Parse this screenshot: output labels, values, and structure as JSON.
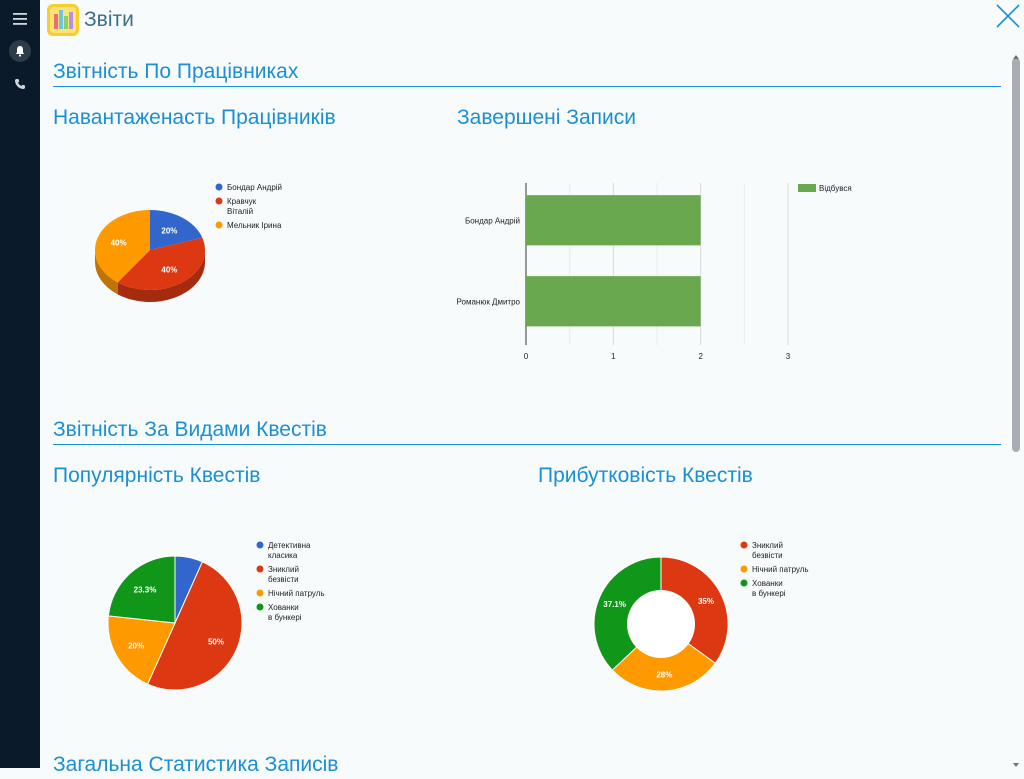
{
  "app": {
    "title": "Звіти",
    "icon": "bar-chart-icon"
  },
  "sidebar": {
    "items": [
      {
        "icon": "menu-icon"
      },
      {
        "icon": "bell-icon"
      },
      {
        "icon": "phone-icon"
      }
    ]
  },
  "sections": {
    "employees": "Звітність По Працівниках",
    "quests": "Звітність За Видами Квестів",
    "general": "Загальна Статистика Записів"
  },
  "chart_data": [
    {
      "type": "pie",
      "title": "Навантаженасть Працівників",
      "legend_placement": "right",
      "slices": [
        {
          "label": "Бондар Андрій",
          "value": 20,
          "color": "#3366cc"
        },
        {
          "label": "Кравчук Віталій",
          "value": 40,
          "color": "#dc3912"
        },
        {
          "label": "Мельник Ірина",
          "value": 40,
          "color": "#ff9900"
        }
      ],
      "data_labels": [
        "20%",
        "40%",
        "40%"
      ]
    },
    {
      "type": "bar",
      "orientation": "horizontal",
      "title": "Завершені Записи",
      "categories": [
        "Бондар Андрій",
        "Романюк Дмитро"
      ],
      "series": [
        {
          "name": "Відбувся",
          "values": [
            2,
            2
          ],
          "color": "#6aa84f"
        }
      ],
      "xlim": [
        0,
        3
      ],
      "xticks": [
        "0",
        "1",
        "2",
        "3"
      ],
      "grid": true,
      "legend_placement": "top-right"
    },
    {
      "type": "pie",
      "title": "Популярність Квестів",
      "legend_placement": "right",
      "slices": [
        {
          "label": "Детективна класика",
          "value": 6.7,
          "color": "#3366cc"
        },
        {
          "label": "Зниклий безвісти",
          "value": 50,
          "color": "#dc3912"
        },
        {
          "label": "Нічний патруль",
          "value": 20,
          "color": "#ff9900"
        },
        {
          "label": "Хованки в бункері",
          "value": 23.3,
          "color": "#109618"
        }
      ],
      "data_labels": [
        "",
        "50%",
        "20%",
        "23.3%"
      ]
    },
    {
      "type": "pie",
      "donut": true,
      "title": "Прибутковість Квестів",
      "legend_placement": "right",
      "slices": [
        {
          "label": "Зниклий безвісти",
          "value": 35,
          "color": "#dc3912"
        },
        {
          "label": "Нічний патруль",
          "value": 28,
          "color": "#ff9900"
        },
        {
          "label": "Хованки в бункері",
          "value": 37.1,
          "color": "#109618"
        }
      ],
      "data_labels": [
        "35%",
        "28%",
        "37.1%"
      ]
    }
  ],
  "close_icon": "close-icon"
}
